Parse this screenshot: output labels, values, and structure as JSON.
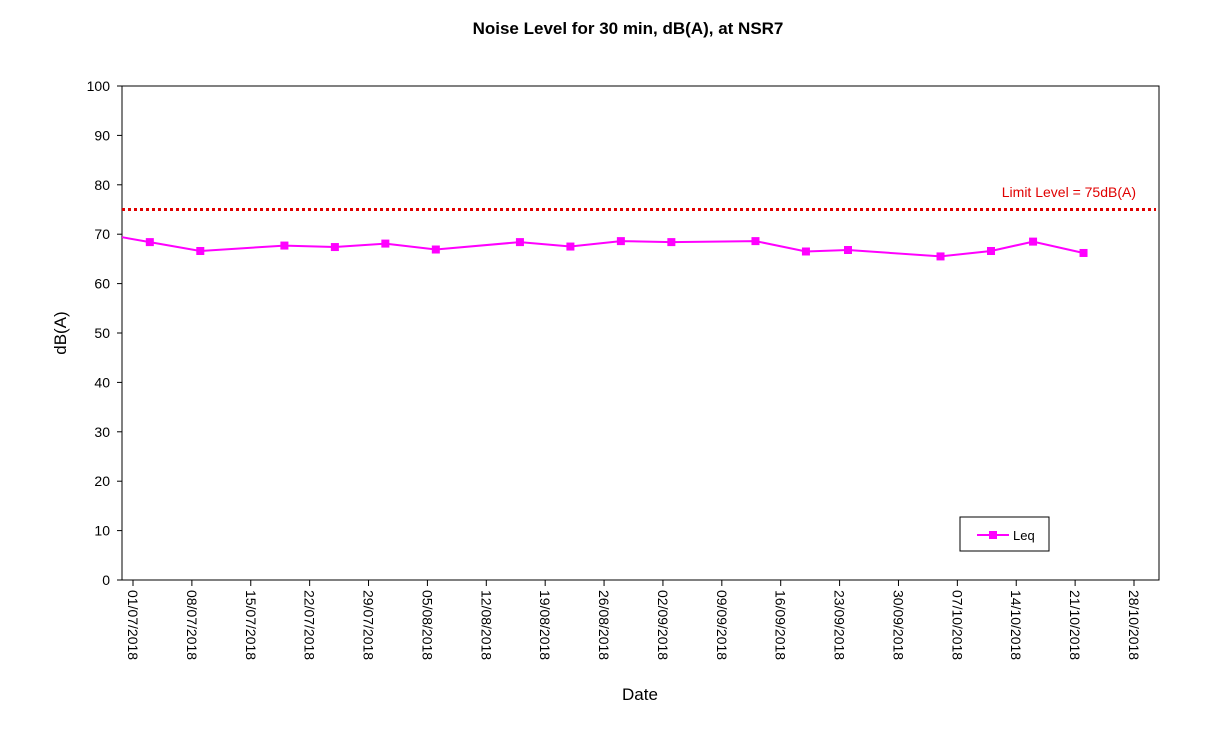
{
  "chart_data": {
    "type": "line",
    "title": "Noise Level for 30 min, dB(A), at NSR7",
    "xlabel": "Date",
    "ylabel": "dB(A)",
    "ylim": [
      0,
      100
    ],
    "y_ticks": [
      0,
      10,
      20,
      30,
      40,
      50,
      60,
      70,
      80,
      90,
      100
    ],
    "xlim": [
      "01/07/2018",
      "28/10/2018"
    ],
    "x_ticks": [
      "01/07/2018",
      "08/07/2018",
      "15/07/2018",
      "22/07/2018",
      "29/07/2018",
      "05/08/2018",
      "12/08/2018",
      "19/08/2018",
      "26/08/2018",
      "02/09/2018",
      "09/09/2018",
      "16/09/2018",
      "23/09/2018",
      "30/09/2018",
      "07/10/2018",
      "14/10/2018",
      "21/10/2018",
      "28/10/2018"
    ],
    "grid": false,
    "legend_position": "bottom-right",
    "series": [
      {
        "name": "Leq",
        "color": "#ff00ff",
        "marker": "square",
        "points": [
          {
            "x": "03/07/2018",
            "y": 68.4
          },
          {
            "x": "09/07/2018",
            "y": 66.6
          },
          {
            "x": "19/07/2018",
            "y": 67.7
          },
          {
            "x": "25/07/2018",
            "y": 67.4
          },
          {
            "x": "31/07/2018",
            "y": 68.1
          },
          {
            "x": "06/08/2018",
            "y": 66.9
          },
          {
            "x": "16/08/2018",
            "y": 68.4
          },
          {
            "x": "22/08/2018",
            "y": 67.5
          },
          {
            "x": "28/08/2018",
            "y": 68.6
          },
          {
            "x": "03/09/2018",
            "y": 68.4
          },
          {
            "x": "13/09/2018",
            "y": 68.6
          },
          {
            "x": "19/09/2018",
            "y": 66.5
          },
          {
            "x": "24/09/2018",
            "y": 66.8
          },
          {
            "x": "05/10/2018",
            "y": 65.5
          },
          {
            "x": "11/10/2018",
            "y": 66.6
          },
          {
            "x": "16/10/2018",
            "y": 68.5
          },
          {
            "x": "22/10/2018",
            "y": 66.2
          }
        ]
      }
    ],
    "reference_line": {
      "label": "Limit Level = 75dB(A)",
      "value": 75,
      "color": "#e00000",
      "style": "dotted"
    }
  }
}
